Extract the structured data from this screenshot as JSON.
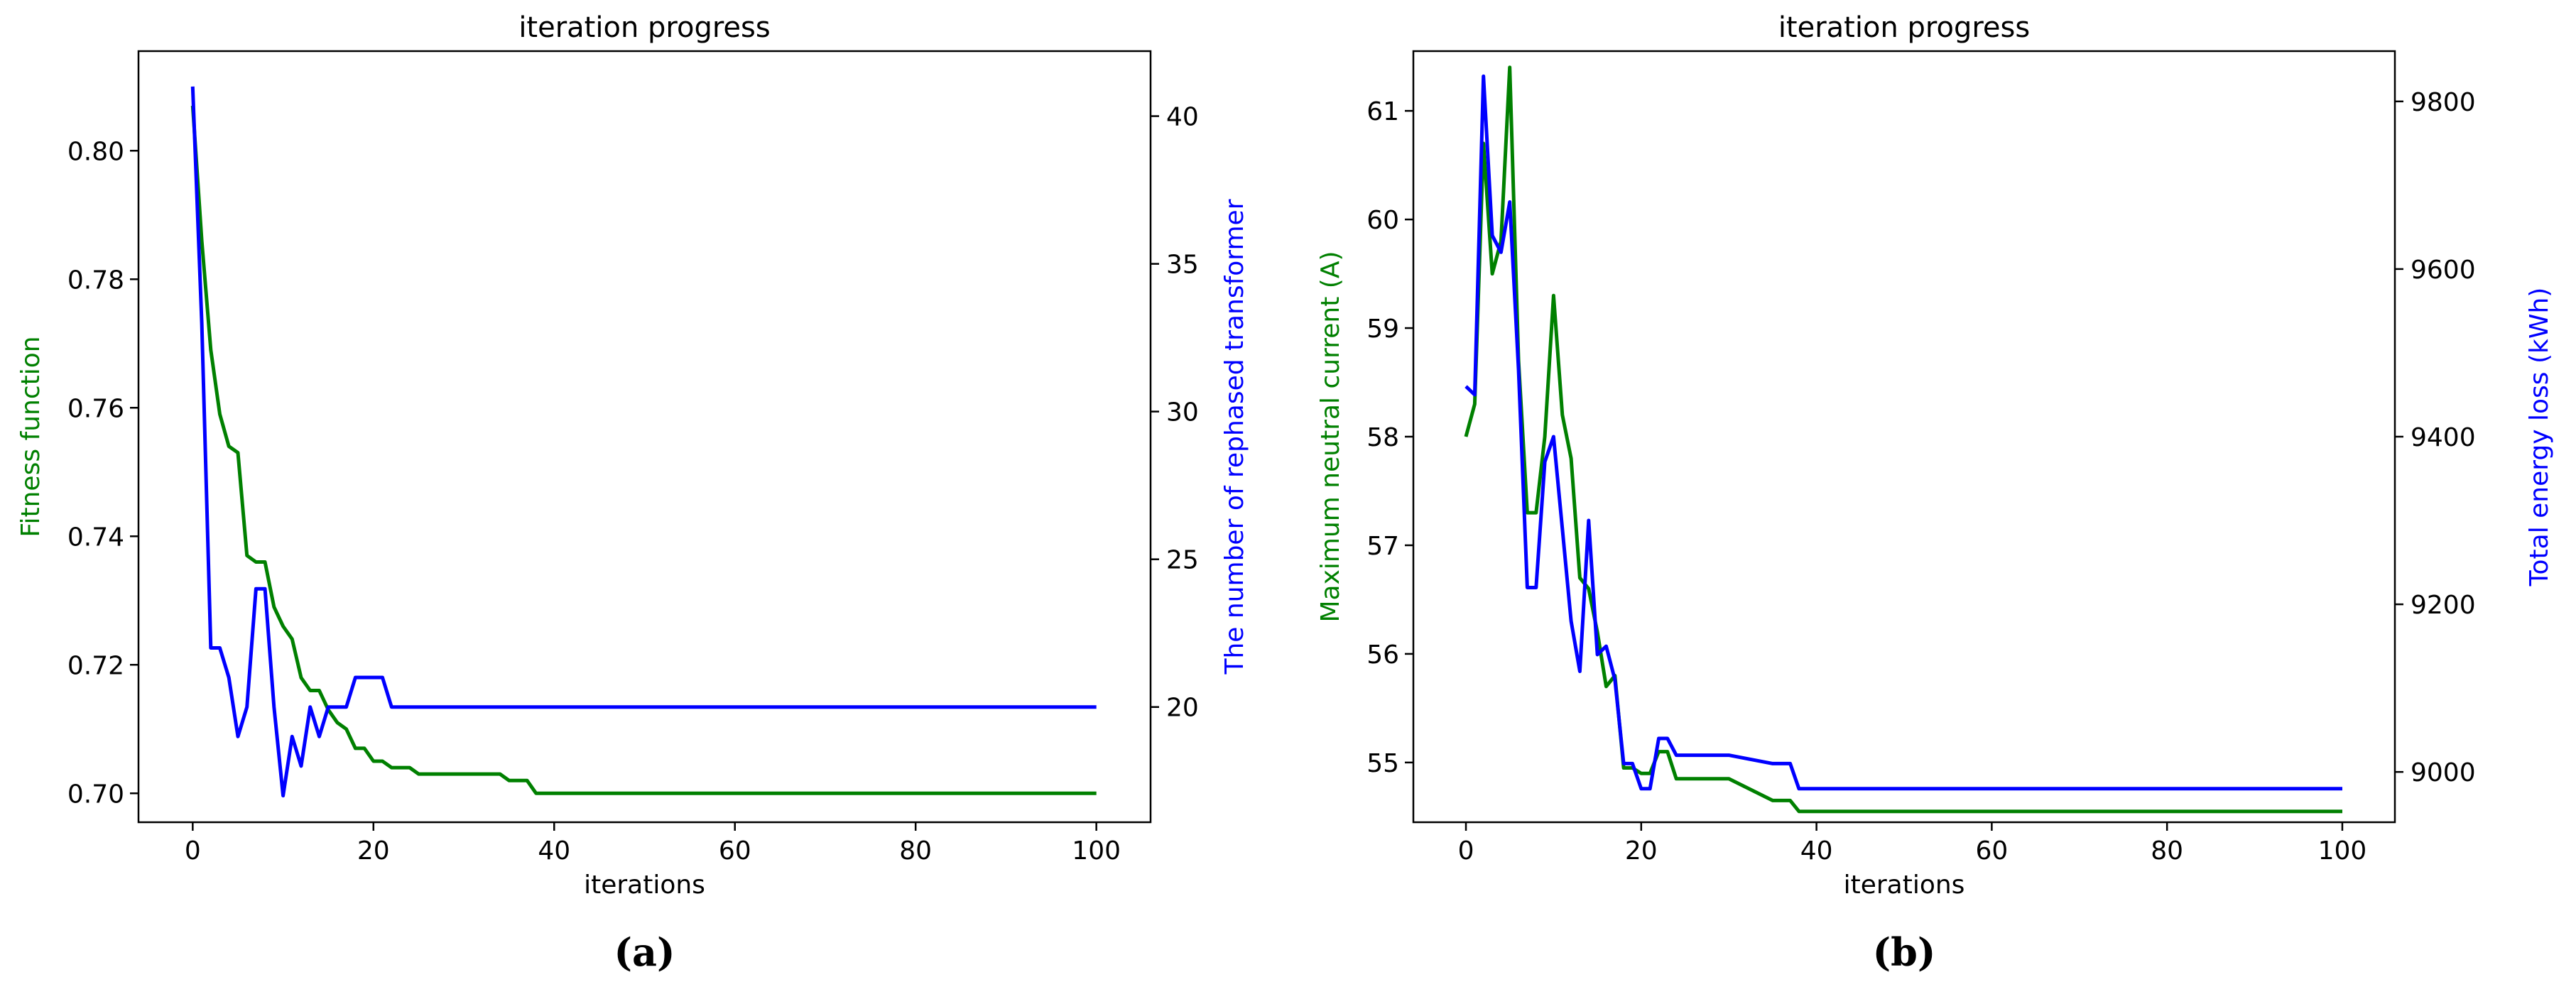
{
  "chart_data": [
    {
      "type": "line",
      "title": "iteration progress",
      "panel_label": "(a)",
      "xlabel": "iterations",
      "ylabel_left": "Fitness function",
      "ylabel_right": "The number of rephased transformer",
      "xlim": [
        -6,
        106
      ],
      "ylim_left": [
        0.6955,
        0.8155
      ],
      "ylim_right": [
        16.1,
        42.2
      ],
      "x_ticks": [
        0,
        20,
        40,
        60,
        80,
        100
      ],
      "y_left_ticks": [
        "0.70",
        "0.72",
        "0.74",
        "0.76",
        "0.78",
        "0.80"
      ],
      "y_right_ticks": [
        20,
        25,
        30,
        35,
        40
      ],
      "grid": false,
      "colors": {
        "left": "#008000",
        "right": "#0000ff"
      },
      "series": [
        {
          "axis": "left",
          "color": "#008000",
          "x": [
            0,
            1,
            2,
            3,
            4,
            5,
            6,
            7,
            8,
            9,
            10,
            11,
            12,
            13,
            14,
            15,
            16,
            17,
            18,
            19,
            20,
            21,
            22,
            23,
            24,
            25,
            26,
            27,
            28,
            29,
            30,
            31,
            32,
            33,
            34,
            35,
            36,
            37,
            38,
            39,
            40,
            50,
            60,
            70,
            80,
            90,
            100
          ],
          "y": [
            0.807,
            0.786,
            0.769,
            0.759,
            0.754,
            0.753,
            0.737,
            0.736,
            0.736,
            0.729,
            0.726,
            0.724,
            0.718,
            0.716,
            0.716,
            0.713,
            0.711,
            0.71,
            0.707,
            0.707,
            0.705,
            0.705,
            0.704,
            0.704,
            0.704,
            0.703,
            0.703,
            0.703,
            0.703,
            0.703,
            0.703,
            0.703,
            0.703,
            0.703,
            0.703,
            0.702,
            0.702,
            0.702,
            0.7,
            0.7,
            0.7,
            0.7,
            0.7,
            0.7,
            0.7,
            0.7,
            0.7
          ]
        },
        {
          "axis": "right",
          "color": "#0000ff",
          "x": [
            0,
            1,
            2,
            3,
            4,
            5,
            6,
            7,
            8,
            9,
            10,
            11,
            12,
            13,
            14,
            15,
            16,
            17,
            18,
            19,
            20,
            21,
            22,
            23,
            24,
            25,
            30,
            40,
            50,
            60,
            70,
            80,
            90,
            100
          ],
          "y": [
            41,
            33,
            22,
            22,
            21,
            19,
            20,
            24,
            24,
            20,
            17,
            19,
            18,
            20,
            19,
            20,
            20,
            20,
            21,
            21,
            21,
            21,
            20,
            20,
            20,
            20,
            20,
            20,
            20,
            20,
            20,
            20,
            20,
            20
          ]
        }
      ]
    },
    {
      "type": "line",
      "title": "iteration progress",
      "panel_label": "(b)",
      "xlabel": "iterations",
      "ylabel_left": "Maximum neutral current (A)",
      "ylabel_right": "Total energy loss (kWh)",
      "xlim": [
        -6,
        106
      ],
      "ylim_left": [
        54.45,
        61.55
      ],
      "ylim_right": [
        8940,
        9860
      ],
      "x_ticks": [
        0,
        20,
        40,
        60,
        80,
        100
      ],
      "y_left_ticks": [
        55,
        56,
        57,
        58,
        59,
        60,
        61
      ],
      "y_right_ticks": [
        9000,
        9200,
        9400,
        9600,
        9800
      ],
      "grid": false,
      "colors": {
        "left": "#008000",
        "right": "#0000ff"
      },
      "series": [
        {
          "axis": "left",
          "color": "#008000",
          "x": [
            0,
            1,
            2,
            3,
            4,
            5,
            6,
            7,
            8,
            9,
            10,
            11,
            12,
            13,
            14,
            15,
            16,
            17,
            18,
            19,
            20,
            21,
            22,
            23,
            24,
            25,
            30,
            35,
            36,
            37,
            38,
            39,
            40,
            50,
            60,
            70,
            80,
            90,
            100
          ],
          "y": [
            58.0,
            58.3,
            60.7,
            59.5,
            59.8,
            61.4,
            58.7,
            57.3,
            57.3,
            58.0,
            59.3,
            58.2,
            57.8,
            56.7,
            56.6,
            56.2,
            55.7,
            55.8,
            54.95,
            54.95,
            54.9,
            54.9,
            55.1,
            55.1,
            54.85,
            54.85,
            54.85,
            54.65,
            54.65,
            54.65,
            54.55,
            54.55,
            54.55,
            54.55,
            54.55,
            54.55,
            54.55,
            54.55,
            54.55
          ]
        },
        {
          "axis": "right",
          "color": "#0000ff",
          "x": [
            0,
            1,
            2,
            3,
            4,
            5,
            6,
            7,
            8,
            9,
            10,
            11,
            12,
            13,
            14,
            15,
            16,
            17,
            18,
            19,
            20,
            21,
            22,
            23,
            24,
            25,
            30,
            35,
            36,
            37,
            38,
            39,
            40,
            50,
            60,
            70,
            80,
            90,
            100
          ],
          "y": [
            9460,
            9450,
            9830,
            9640,
            9620,
            9680,
            9480,
            9220,
            9220,
            9370,
            9400,
            9290,
            9180,
            9120,
            9300,
            9140,
            9150,
            9110,
            9010,
            9010,
            8980,
            8980,
            9040,
            9040,
            9020,
            9020,
            9020,
            9010,
            9010,
            9010,
            8980,
            8980,
            8980,
            8980,
            8980,
            8980,
            8980,
            8980,
            8980
          ]
        }
      ]
    }
  ]
}
